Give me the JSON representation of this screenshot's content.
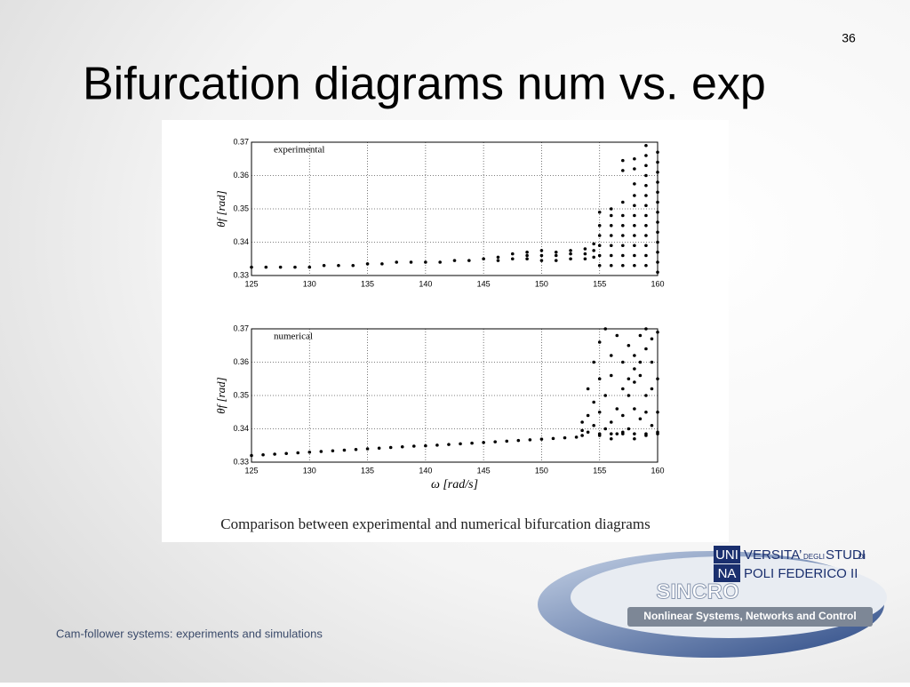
{
  "slide": {
    "title": "Bifurcation diagrams num vs. exp",
    "page_number": "36",
    "caption": "Comparison between experimental and numerical bifurcation diagrams",
    "footer": "Cam-follower systems: experiments and simulations",
    "logo": {
      "uni": "UNI",
      "na": "NA",
      "versita": "VERSITA’",
      "degli": "DEGLI",
      "studi": "STUDI",
      "di": "DI",
      "poli": "POLI FEDERICO II",
      "sincro": "SINCRO",
      "tagline": "Nonlinear Systems, Networks and Control"
    }
  },
  "chart_data": [
    {
      "type": "scatter",
      "annotation": "experimental",
      "ylabel": "θf [rad]",
      "color": "#000000",
      "grid": true,
      "xlim": [
        125,
        160
      ],
      "ylim": [
        0.33,
        0.37
      ],
      "xticks": [
        125,
        130,
        135,
        140,
        145,
        150,
        155,
        160
      ],
      "yticks": [
        0.33,
        0.34,
        0.35,
        0.36,
        0.37
      ],
      "x": [
        125,
        126.25,
        127.5,
        128.75,
        130,
        131.25,
        132.5,
        133.75,
        135,
        136.25,
        137.5,
        138.75,
        140,
        141.25,
        142.5,
        143.75,
        145,
        146.25,
        146.25,
        147.5,
        147.5,
        148.75,
        148.75,
        148.75,
        150,
        150,
        150,
        151.25,
        151.25,
        151.25,
        152.5,
        152.5,
        152.5,
        153.75,
        153.75,
        153.75,
        154.5,
        154.5,
        154.5,
        155,
        155,
        155,
        155,
        155,
        155,
        156,
        156,
        156,
        156,
        156,
        156,
        156,
        157,
        157,
        157,
        157,
        157,
        157,
        157,
        157,
        157,
        158,
        158,
        158,
        158,
        158,
        158,
        158,
        158,
        158,
        158,
        158,
        159,
        159,
        159,
        159,
        159,
        159,
        159,
        159,
        159,
        159,
        159,
        159,
        159,
        160,
        160,
        160,
        160,
        160,
        160,
        160,
        160,
        160,
        160,
        160,
        160,
        160
      ],
      "values": [
        0.3325,
        0.3325,
        0.3325,
        0.3325,
        0.3325,
        0.333,
        0.333,
        0.333,
        0.3335,
        0.3335,
        0.334,
        0.334,
        0.334,
        0.334,
        0.3345,
        0.3345,
        0.335,
        0.3345,
        0.3355,
        0.335,
        0.3365,
        0.335,
        0.336,
        0.337,
        0.3345,
        0.336,
        0.3375,
        0.3345,
        0.336,
        0.337,
        0.335,
        0.3365,
        0.3375,
        0.335,
        0.3365,
        0.338,
        0.3355,
        0.3375,
        0.3395,
        0.333,
        0.336,
        0.339,
        0.342,
        0.345,
        0.349,
        0.333,
        0.336,
        0.339,
        0.342,
        0.345,
        0.348,
        0.35,
        0.333,
        0.336,
        0.339,
        0.342,
        0.345,
        0.348,
        0.352,
        0.3615,
        0.3645,
        0.333,
        0.336,
        0.339,
        0.342,
        0.345,
        0.348,
        0.351,
        0.354,
        0.3575,
        0.362,
        0.365,
        0.333,
        0.336,
        0.339,
        0.342,
        0.345,
        0.348,
        0.351,
        0.354,
        0.357,
        0.36,
        0.363,
        0.366,
        0.369,
        0.331,
        0.334,
        0.337,
        0.34,
        0.343,
        0.346,
        0.349,
        0.352,
        0.355,
        0.358,
        0.361,
        0.364,
        0.367
      ]
    },
    {
      "type": "scatter",
      "annotation": "numerical",
      "ylabel": "θf [rad]",
      "xlabel": "ω [rad/s]",
      "color": "#000000",
      "grid": true,
      "xlim": [
        125,
        160
      ],
      "ylim": [
        0.33,
        0.37
      ],
      "xticks": [
        125,
        130,
        135,
        140,
        145,
        150,
        155,
        160
      ],
      "yticks": [
        0.33,
        0.34,
        0.35,
        0.36,
        0.37
      ],
      "x": [
        125,
        126,
        127,
        128,
        129,
        130,
        131,
        132,
        133,
        134,
        135,
        136,
        137,
        138,
        139,
        140,
        141,
        142,
        143,
        144,
        145,
        146,
        147,
        148,
        149,
        150,
        151,
        152,
        153,
        153.5,
        153.5,
        153.5,
        154,
        154,
        154,
        154.5,
        154.5,
        154.5,
        155,
        155,
        155,
        155,
        155.5,
        155.5,
        155.5,
        156,
        156,
        156,
        156,
        156.5,
        156.5,
        156.5,
        157,
        157,
        157,
        157,
        157.5,
        157.5,
        157.5,
        157.5,
        158,
        158,
        158,
        158,
        158,
        158.5,
        158.5,
        158.5,
        158.5,
        159,
        159,
        159,
        159,
        159,
        159.5,
        159.5,
        159.5,
        159.5,
        160,
        160,
        160,
        160,
        155,
        156,
        157,
        158,
        159,
        160
      ],
      "values": [
        0.332,
        0.3322,
        0.3324,
        0.3326,
        0.3328,
        0.333,
        0.3332,
        0.3334,
        0.3336,
        0.3338,
        0.334,
        0.3342,
        0.3344,
        0.3346,
        0.3348,
        0.3349,
        0.3351,
        0.3353,
        0.3355,
        0.3357,
        0.3359,
        0.3361,
        0.3363,
        0.3365,
        0.3367,
        0.3369,
        0.3371,
        0.3373,
        0.3375,
        0.338,
        0.342,
        0.3395,
        0.344,
        0.352,
        0.339,
        0.36,
        0.348,
        0.341,
        0.366,
        0.338,
        0.355,
        0.345,
        0.37,
        0.34,
        0.35,
        0.362,
        0.342,
        0.337,
        0.356,
        0.368,
        0.346,
        0.3385,
        0.344,
        0.352,
        0.36,
        0.339,
        0.35,
        0.355,
        0.365,
        0.34,
        0.354,
        0.358,
        0.362,
        0.337,
        0.346,
        0.356,
        0.36,
        0.368,
        0.343,
        0.35,
        0.345,
        0.364,
        0.37,
        0.338,
        0.36,
        0.341,
        0.367,
        0.352,
        0.369,
        0.339,
        0.355,
        0.345,
        0.3385,
        0.3385,
        0.3385,
        0.3385,
        0.3385,
        0.3385
      ]
    }
  ]
}
